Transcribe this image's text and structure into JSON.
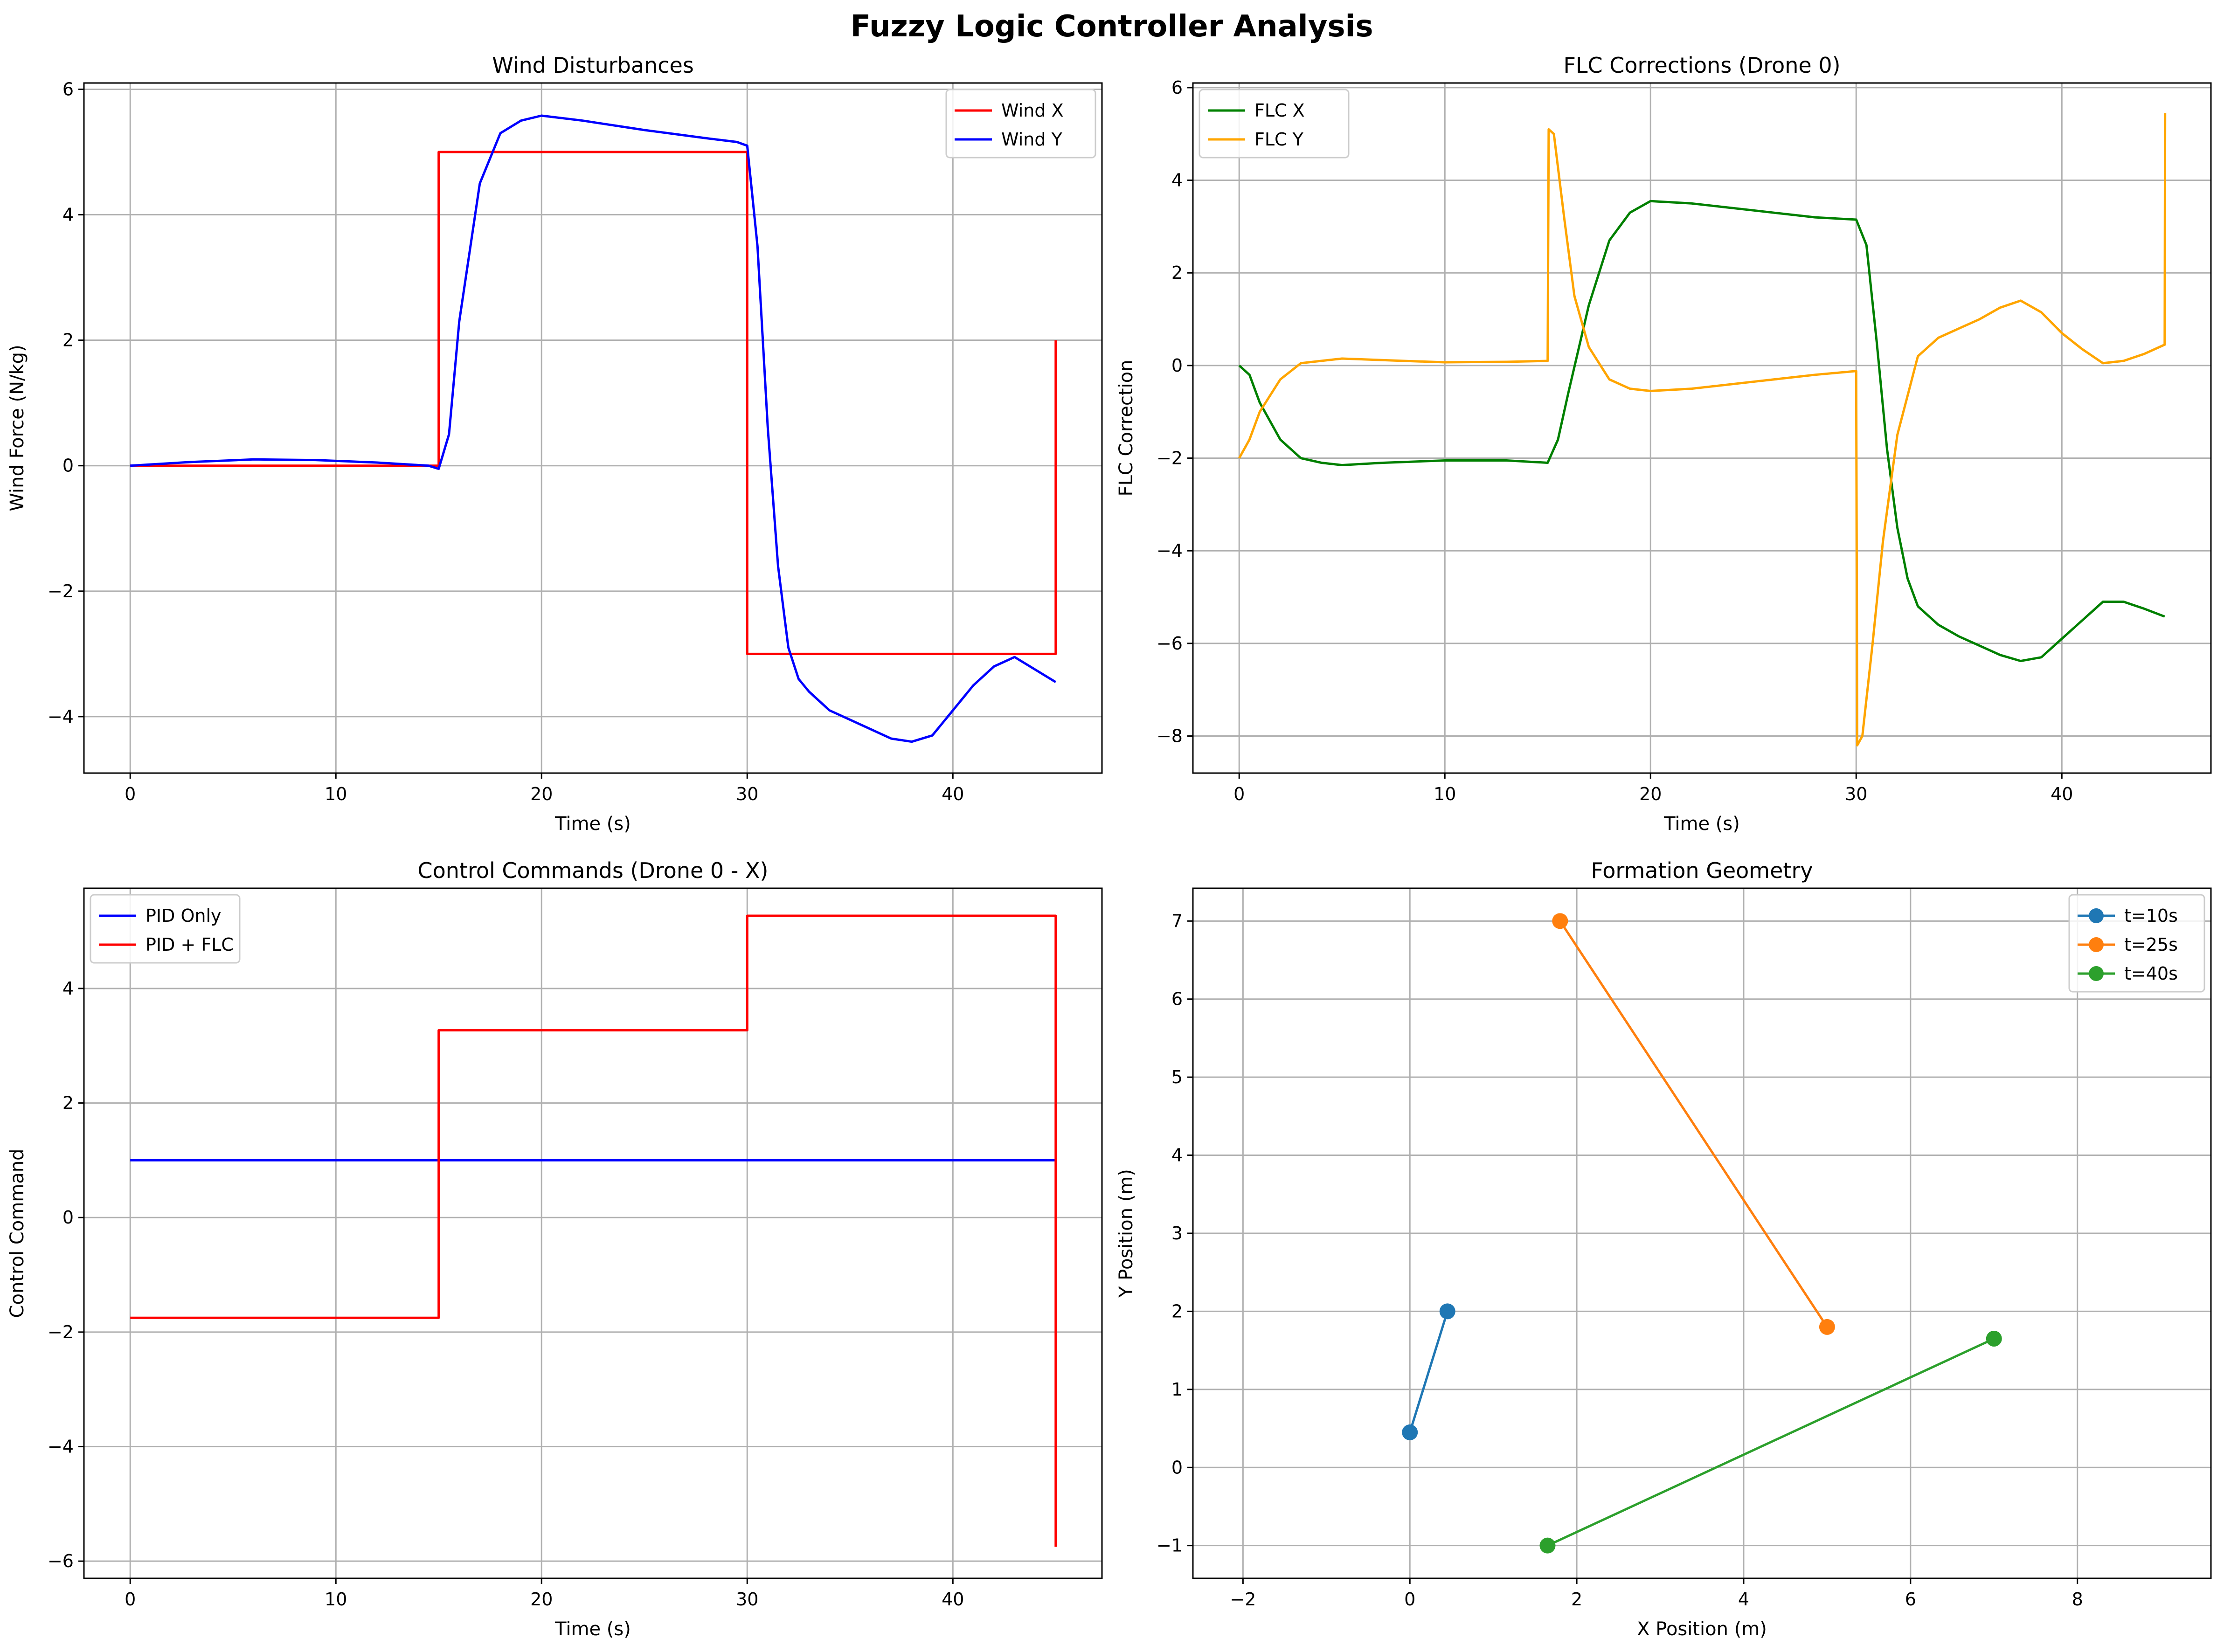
{
  "figure": {
    "title": "Fuzzy Logic Controller Analysis"
  },
  "colors": {
    "red": "#ff0000",
    "blue": "#0000ff",
    "green": "#008000",
    "orange": "#ffa500",
    "tab_blue": "#1f77b4",
    "tab_orange": "#ff7f0e",
    "tab_green": "#2ca02c",
    "grid": "#b0b0b0"
  },
  "chart_data": [
    {
      "type": "line",
      "title": "Wind Disturbances",
      "xlabel": "Time (s)",
      "ylabel": "Wind Force (N/kg)",
      "xlim": [
        -2.25,
        47.25
      ],
      "ylim": [
        -4.9,
        6.1
      ],
      "xticks": [
        0,
        10,
        20,
        30,
        40
      ],
      "yticks": [
        -4,
        -2,
        0,
        2,
        4,
        6
      ],
      "grid": true,
      "legend": "top-right",
      "series": [
        {
          "name": "Wind X",
          "color": "#ff0000",
          "x": [
            0,
            15,
            15,
            30,
            30,
            45,
            45
          ],
          "y": [
            0,
            0,
            5,
            5,
            -3,
            -3,
            2
          ]
        },
        {
          "name": "Wind Y",
          "color": "#0000ff",
          "x": [
            0,
            3,
            6,
            9,
            12,
            14.5,
            15,
            15.5,
            16,
            17,
            18,
            19,
            20,
            22,
            25,
            28,
            29.5,
            30,
            30.5,
            31,
            31.5,
            32,
            32.5,
            33,
            34,
            35,
            36,
            37,
            38,
            39,
            40,
            41,
            42,
            43,
            44,
            45
          ],
          "y": [
            0,
            0.06,
            0.1,
            0.09,
            0.05,
            0,
            -0.05,
            0.5,
            2.3,
            4.5,
            5.3,
            5.5,
            5.58,
            5.5,
            5.35,
            5.22,
            5.16,
            5.1,
            3.5,
            0.6,
            -1.6,
            -2.9,
            -3.4,
            -3.6,
            -3.9,
            -4.05,
            -4.2,
            -4.35,
            -4.4,
            -4.3,
            -3.9,
            -3.5,
            -3.2,
            -3.05,
            -3.25,
            -3.45
          ]
        }
      ]
    },
    {
      "type": "line",
      "title": "FLC Corrections (Drone 0)",
      "xlabel": "Time (s)",
      "ylabel": "FLC Correction",
      "xlim": [
        -2.25,
        47.25
      ],
      "ylim": [
        -8.8,
        6.1
      ],
      "xticks": [
        0,
        10,
        20,
        30,
        40
      ],
      "yticks": [
        -8,
        -6,
        -4,
        -2,
        0,
        2,
        4,
        6
      ],
      "grid": true,
      "legend": "top-left",
      "series": [
        {
          "name": "FLC X",
          "color": "#008000",
          "x": [
            0,
            0.5,
            1,
            2,
            3,
            4,
            5,
            7,
            10,
            13,
            15,
            15.5,
            16,
            17,
            18,
            19,
            20,
            22,
            25,
            28,
            30,
            30.5,
            31,
            31.5,
            32,
            32.5,
            33,
            34,
            35,
            36,
            37,
            38,
            39,
            40,
            41,
            42,
            43,
            44,
            45
          ],
          "y": [
            0,
            -0.2,
            -0.8,
            -1.6,
            -2.0,
            -2.1,
            -2.15,
            -2.1,
            -2.05,
            -2.05,
            -2.1,
            -1.6,
            -0.6,
            1.3,
            2.7,
            3.3,
            3.55,
            3.5,
            3.35,
            3.2,
            3.15,
            2.6,
            0.5,
            -1.8,
            -3.5,
            -4.6,
            -5.2,
            -5.6,
            -5.85,
            -6.05,
            -6.25,
            -6.38,
            -6.3,
            -5.9,
            -5.5,
            -5.1,
            -5.1,
            -5.25,
            -5.42
          ]
        },
        {
          "name": "FLC Y",
          "color": "#ffa500",
          "x": [
            0,
            0.5,
            1,
            2,
            3,
            5,
            8,
            10,
            13,
            15,
            15.05,
            15.3,
            15.8,
            16.3,
            17,
            18,
            19,
            20,
            22,
            25,
            28,
            30,
            30.05,
            30.3,
            30.8,
            31.3,
            32,
            33,
            34,
            35,
            36,
            37,
            38,
            39,
            40,
            41,
            42,
            43,
            44,
            45,
            45.02
          ],
          "y": [
            -2,
            -1.6,
            -1.0,
            -0.3,
            0.05,
            0.15,
            0.1,
            0.07,
            0.08,
            0.1,
            5.1,
            5.0,
            3.2,
            1.5,
            0.4,
            -0.3,
            -0.5,
            -0.55,
            -0.5,
            -0.35,
            -0.2,
            -0.12,
            -8.2,
            -8.0,
            -6.0,
            -3.8,
            -1.5,
            0.2,
            0.6,
            0.8,
            1.0,
            1.25,
            1.4,
            1.15,
            0.7,
            0.35,
            0.05,
            0.1,
            0.25,
            0.45,
            5.45
          ]
        }
      ]
    },
    {
      "type": "line",
      "title": "Control Commands (Drone 0 - X)",
      "xlabel": "Time (s)",
      "ylabel": "Control Command",
      "xlim": [
        -2.25,
        47.25
      ],
      "ylim": [
        -6.3,
        5.75
      ],
      "xticks": [
        0,
        10,
        20,
        30,
        40
      ],
      "yticks": [
        -6,
        -4,
        -2,
        0,
        2,
        4
      ],
      "grid": true,
      "legend": "top-left",
      "series": [
        {
          "name": "PID Only",
          "color": "#0000ff",
          "x": [
            0,
            45
          ],
          "y": [
            1.0,
            1.0
          ]
        },
        {
          "name": "PID + FLC",
          "color": "#ff0000",
          "x": [
            0,
            15,
            15,
            30,
            30,
            45,
            45
          ],
          "y": [
            -1.75,
            -1.75,
            3.27,
            3.27,
            5.27,
            5.27,
            -5.75
          ]
        }
      ]
    },
    {
      "type": "line",
      "title": "Formation Geometry",
      "xlabel": "X Position (m)",
      "ylabel": "Y Position (m)",
      "xlim": [
        -2.6,
        9.6
      ],
      "ylim": [
        -1.42,
        7.42
      ],
      "xticks": [
        -2,
        0,
        2,
        4,
        6,
        8
      ],
      "yticks": [
        -1,
        0,
        1,
        2,
        3,
        4,
        5,
        6,
        7
      ],
      "grid": true,
      "legend": "top-right",
      "markers": true,
      "series": [
        {
          "name": "t=10s",
          "color": "#1f77b4",
          "x": [
            0.0,
            0.45
          ],
          "y": [
            0.45,
            2.0
          ]
        },
        {
          "name": "t=25s",
          "color": "#ff7f0e",
          "x": [
            1.8,
            5.0
          ],
          "y": [
            7.0,
            1.8
          ]
        },
        {
          "name": "t=40s",
          "color": "#2ca02c",
          "x": [
            1.65,
            7.0
          ],
          "y": [
            -1.0,
            1.65
          ]
        }
      ]
    }
  ]
}
